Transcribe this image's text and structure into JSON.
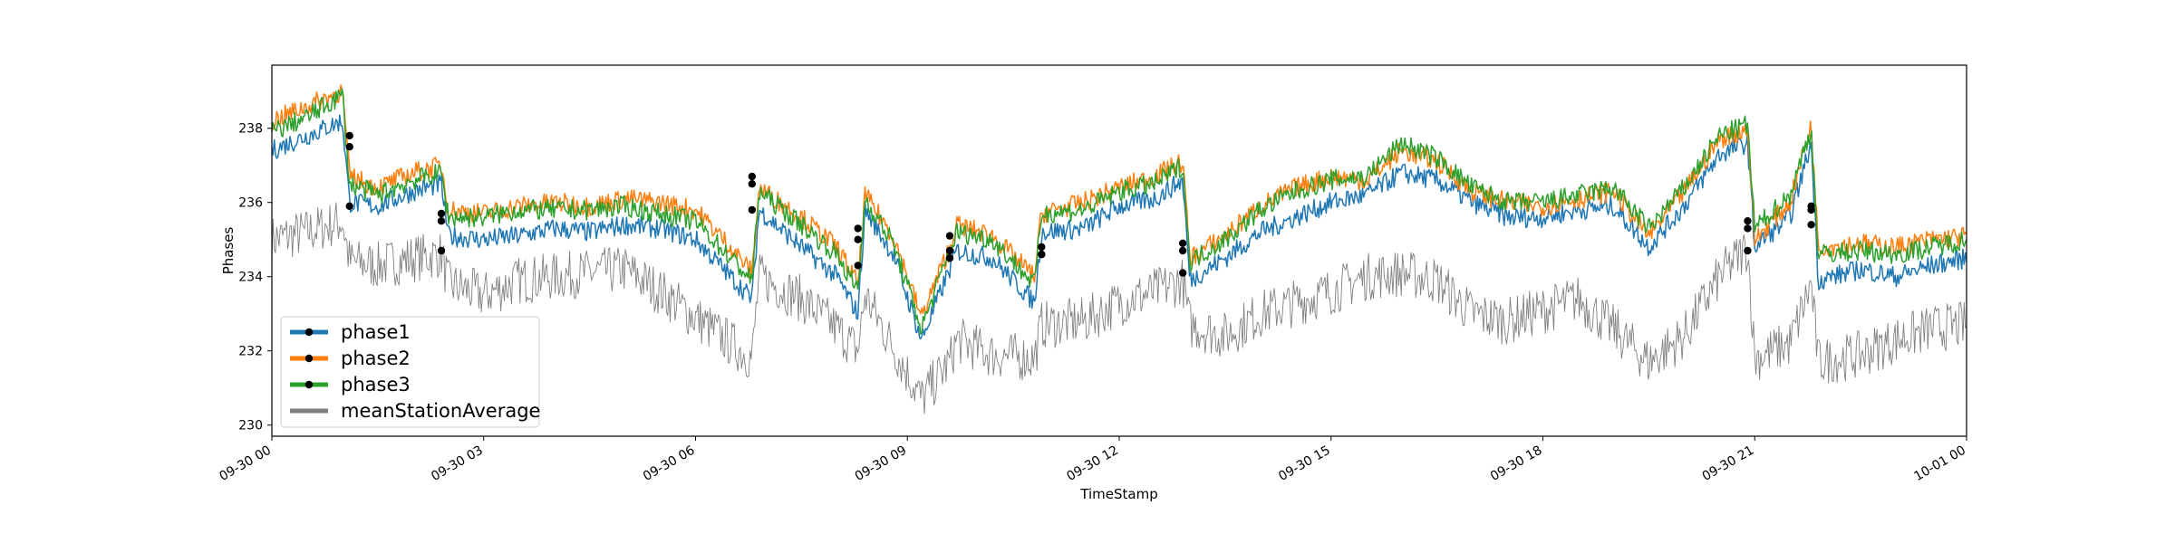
{
  "chart_data": {
    "type": "line",
    "xlabel": "TimeStamp",
    "ylabel": "Phases",
    "xlim": [
      "09-30 00:00",
      "10-01 00:00"
    ],
    "ylim": [
      229.7,
      239.7
    ],
    "x_ticks": [
      "09-30 00",
      "09-30 03",
      "09-30 06",
      "09-30 09",
      "09-30 12",
      "09-30 15",
      "09-30 18",
      "09-30 21",
      "10-01 00"
    ],
    "y_ticks": [
      230,
      232,
      234,
      236,
      238
    ],
    "grid": false,
    "legend": {
      "placement": "lower-left"
    },
    "x_hours": [
      0,
      0.5,
      1,
      1.1,
      1.5,
      2,
      2.4,
      2.5,
      3,
      3.5,
      4,
      4.5,
      5,
      5.5,
      6,
      6.5,
      6.8,
      6.9,
      7.5,
      8,
      8.3,
      8.4,
      8.8,
      9.2,
      9.6,
      9.7,
      10.2,
      10.8,
      10.9,
      11.5,
      12,
      12.5,
      12.9,
      13,
      13.5,
      14,
      14.5,
      15,
      15.5,
      16,
      16.5,
      17,
      17.5,
      18,
      18.5,
      19,
      19.5,
      20,
      20.5,
      20.9,
      21,
      21.5,
      21.8,
      21.9,
      22.5,
      23,
      23.5,
      24
    ],
    "series": [
      {
        "name": "phase1",
        "color": "#1f77b4",
        "values": [
          237.4,
          237.8,
          238.2,
          236.0,
          235.9,
          236.3,
          236.5,
          235.1,
          235.0,
          235.1,
          235.3,
          235.2,
          235.4,
          235.3,
          235.0,
          234.0,
          233.4,
          235.8,
          234.8,
          234.0,
          233.0,
          235.8,
          234.6,
          232.3,
          234.2,
          234.7,
          234.5,
          233.3,
          235.2,
          235.3,
          235.9,
          236.1,
          236.6,
          233.9,
          234.5,
          235.2,
          235.6,
          236.0,
          236.2,
          236.8,
          236.6,
          236.0,
          235.6,
          235.6,
          235.8,
          235.9,
          234.8,
          235.9,
          237.3,
          237.6,
          234.8,
          235.6,
          237.6,
          233.9,
          234.2,
          234.0,
          234.3,
          234.5
        ]
      },
      {
        "name": "phase2",
        "color": "#ff7f0e",
        "values": [
          238.2,
          238.6,
          239.0,
          236.7,
          236.4,
          236.8,
          237.0,
          235.8,
          235.7,
          235.9,
          236.0,
          235.9,
          236.1,
          236.0,
          235.8,
          234.8,
          234.1,
          236.4,
          235.6,
          234.8,
          233.8,
          236.2,
          235.1,
          232.9,
          234.8,
          235.4,
          235.1,
          234.0,
          235.7,
          236.0,
          236.4,
          236.7,
          237.1,
          234.5,
          235.1,
          235.9,
          236.4,
          236.7,
          236.6,
          237.4,
          237.1,
          236.3,
          236.0,
          235.9,
          236.1,
          236.3,
          235.1,
          236.3,
          237.7,
          238.0,
          235.0,
          236.0,
          238.1,
          234.8,
          234.9,
          234.8,
          235.0,
          235.1
        ]
      },
      {
        "name": "phase3",
        "color": "#2ca02c",
        "values": [
          237.9,
          238.3,
          238.9,
          236.5,
          236.2,
          236.6,
          236.8,
          235.6,
          235.6,
          235.8,
          235.8,
          235.8,
          235.9,
          235.7,
          235.5,
          234.5,
          233.9,
          236.3,
          235.4,
          234.6,
          233.6,
          236.1,
          234.9,
          232.6,
          234.7,
          235.2,
          235.0,
          233.8,
          235.7,
          235.8,
          236.3,
          236.5,
          237.0,
          234.4,
          235.0,
          235.8,
          236.3,
          236.6,
          236.7,
          237.6,
          237.2,
          236.4,
          236.0,
          236.0,
          236.2,
          236.4,
          235.3,
          236.4,
          237.8,
          238.1,
          235.3,
          236.2,
          238.0,
          234.6,
          234.7,
          234.6,
          234.8,
          235.0
        ]
      },
      {
        "name": "meanStationAverage",
        "color": "#808080",
        "values": [
          235.0,
          235.2,
          235.5,
          234.4,
          234.3,
          234.5,
          234.6,
          233.8,
          233.5,
          233.9,
          234.0,
          234.1,
          234.2,
          233.6,
          232.9,
          232.2,
          231.8,
          234.0,
          233.4,
          232.6,
          232.0,
          233.5,
          232.1,
          230.7,
          231.7,
          232.3,
          231.9,
          231.8,
          232.7,
          232.8,
          233.3,
          233.6,
          233.9,
          232.7,
          232.4,
          233.0,
          233.3,
          233.6,
          234.0,
          234.1,
          233.9,
          233.0,
          232.8,
          233.1,
          233.4,
          232.6,
          231.7,
          232.4,
          234.0,
          234.8,
          231.8,
          232.2,
          233.8,
          231.7,
          231.9,
          232.3,
          232.6,
          232.7
        ]
      }
    ],
    "markers": {
      "x_hours": [
        1.1,
        2.4,
        6.8,
        8.3,
        9.6,
        10.9,
        12.9,
        20.9,
        21.8
      ],
      "phase1": [
        235.9,
        234.7,
        235.8,
        234.3,
        234.5,
        234.6,
        234.1,
        234.7,
        235.4
      ],
      "phase2": [
        237.8,
        235.7,
        236.7,
        235.0,
        234.7,
        234.8,
        234.9,
        235.3,
        235.9
      ],
      "phase3": [
        237.5,
        235.5,
        236.5,
        235.3,
        235.1,
        234.6,
        234.7,
        235.5,
        235.8
      ]
    }
  }
}
